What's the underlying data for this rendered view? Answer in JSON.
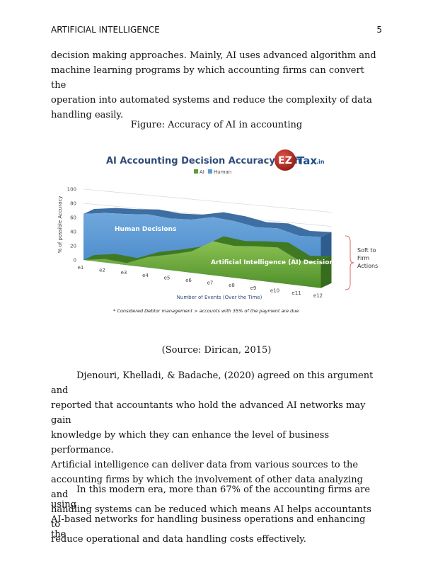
{
  "header": {
    "running_head": "ARTIFICIAL INTELLIGENCE",
    "page_number": "5"
  },
  "paragraphs": {
    "p1": [
      "decision making approaches. Mainly, AI uses advanced algorithm and",
      "machine learning programs by which accounting firms can convert the",
      "operation into automated systems and reduce the complexity of data",
      "handling easily."
    ],
    "p2": [
      "Djenouri, Khelladi, & Badache, (2020) agreed on this argument and",
      "reported that accountants who hold the advanced AI networks may gain",
      "knowledge by which they can enhance the level of business performance.",
      "Artificial intelligence can deliver data from various sources to the",
      "accounting firms by which the involvement of other data analyzing and",
      "handling systems can be reduced which means AI helps accountants to",
      "reduce operational and data handling costs effectively."
    ],
    "p3": [
      "In this modern era, more than 67% of the accounting firms are using",
      "AI-based networks for handling business operations and enhancing the"
    ]
  },
  "figure": {
    "caption": "Figure: Accuracy of AI in accounting",
    "source": "(Source: Dirican, 2015)"
  },
  "chart_data": {
    "type": "area",
    "title": "AI Accounting Decision Accuracy with",
    "logo": {
      "ez": "EZ",
      "tax": "Tax",
      "suffix": ".in"
    },
    "xlabel": "Number of Events (Over the Time)",
    "ylabel": "% of possible Accuracy",
    "categories": [
      "e1",
      "e2",
      "e3",
      "e4",
      "e5",
      "e6",
      "e7",
      "e8",
      "e9",
      "e10",
      "e11",
      "e12"
    ],
    "yticks": [
      "0",
      "20",
      "40",
      "60",
      "80",
      "100"
    ],
    "ylim": [
      0,
      100
    ],
    "series": [
      {
        "name": "AI",
        "values": [
          0,
          5,
          3,
          15,
          22,
          30,
          48,
          45,
          48,
          50,
          35,
          38
        ],
        "color": "#5a9e32"
      },
      {
        "name": "Human",
        "values": [
          65,
          70,
          72,
          75,
          73,
          75,
          82,
          80,
          75,
          77,
          70,
          72
        ],
        "color": "#5b9bd5"
      }
    ],
    "annotations": {
      "human": "Human Decisions",
      "ai": "Artificial Intelligence (AI) Decisions",
      "gap": [
        "Soft to",
        "Firm",
        "Actions"
      ],
      "footnote": "* Considered Debtor management > accounts with 35% of the payment are due"
    },
    "grid": true,
    "legend_position": "top-center"
  }
}
